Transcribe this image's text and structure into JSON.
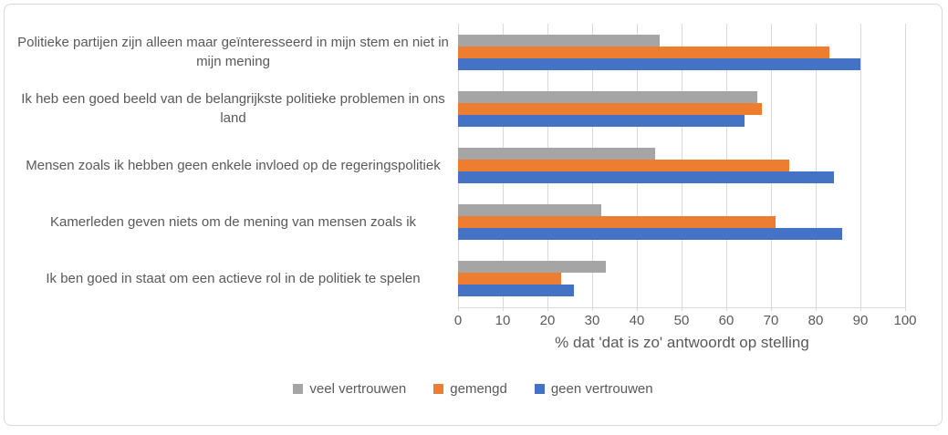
{
  "figure": {
    "background": "#FFFFFF",
    "border_color": "#D9D9D9",
    "grid_color": "#D9D9D9",
    "text_color": "#595959"
  },
  "chart_data": {
    "type": "bar",
    "orientation": "horizontal",
    "title": "",
    "xlabel": "% dat 'dat is zo' antwoordt op stelling",
    "ylabel": "",
    "xlim": [
      0,
      100
    ],
    "x_ticks": [
      0,
      10,
      20,
      30,
      40,
      50,
      60,
      70,
      80,
      90,
      100
    ],
    "grid": true,
    "legend_position": "bottom",
    "categories": [
      "Politieke partijen zijn alleen maar geïnteresseerd in mijn stem en niet in mijn mening",
      "Ik heb een goed beeld van de belangrijkste politieke problemen in ons land",
      "Mensen zoals ik hebben geen enkele invloed op de regeringspolitiek",
      "Kamerleden geven niets om de mening van mensen zoals ik",
      "Ik ben goed in staat om een actieve rol in de politiek te spelen"
    ],
    "series": [
      {
        "name": "veel vertrouwen",
        "color": "#A5A5A5",
        "values": [
          45,
          67,
          44,
          32,
          33
        ]
      },
      {
        "name": "gemengd",
        "color": "#ED7D31",
        "values": [
          83,
          68,
          74,
          71,
          23
        ]
      },
      {
        "name": "geen vertrouwen",
        "color": "#4472C4",
        "values": [
          90,
          64,
          84,
          86,
          26
        ]
      }
    ]
  }
}
